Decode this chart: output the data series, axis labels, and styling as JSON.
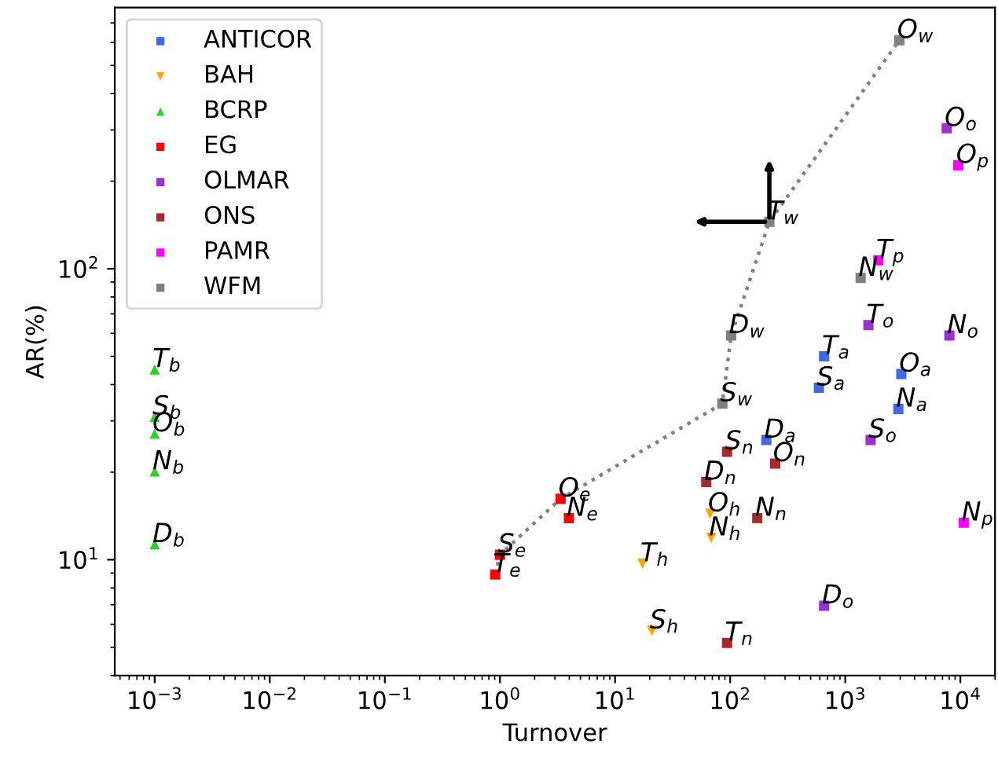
{
  "chart_data": {
    "type": "scatter",
    "xlabel": "Turnover",
    "ylabel": "AR(%)",
    "log": "xy",
    "grid": false,
    "legend": "top left",
    "xlim": [
      0.00045,
      20000
    ],
    "ylim": [
      4.0,
      790
    ],
    "xticks": [
      {
        "value": 0.001,
        "label": "10$^{−3}$"
      },
      {
        "value": 0.01,
        "label": "10$^{−2}$"
      },
      {
        "value": 0.1,
        "label": "10$^{−1}$"
      },
      {
        "value": 1,
        "label": "10$^{0}$"
      },
      {
        "value": 10,
        "label": "10$^{1}$"
      },
      {
        "value": 100,
        "label": "10$^{2}$"
      },
      {
        "value": 1000,
        "label": "10$^{3}$"
      },
      {
        "value": 10000,
        "label": "10$^{4}$"
      }
    ],
    "yticks": [
      {
        "value": 10,
        "label": "10$^{1}$"
      },
      {
        "value": 100,
        "label": "10$^{2}$"
      }
    ],
    "series": [
      {
        "name": "ANTICOR",
        "color": "#4169e1",
        "marker": "square",
        "x": [
          655,
          590,
          3070,
          2890,
          206
        ],
        "values": [
          50,
          39,
          43.5,
          33,
          25.8
        ]
      },
      {
        "name": "BAH",
        "color": "#ffa500",
        "marker": "triangle_down",
        "x": [
          67,
          68.5,
          17.3,
          20.9
        ],
        "values": [
          14.4,
          11.9,
          9.7,
          5.7
        ]
      },
      {
        "name": "BCRP",
        "color": "#32cd32",
        "marker": "triangle",
        "x": [
          0.001,
          0.001,
          0.001,
          0.001,
          0.001
        ],
        "values": [
          45.1,
          31.0,
          27.1,
          20.1,
          11.3
        ]
      },
      {
        "name": "EG",
        "color": "#ff0000",
        "marker": "square",
        "x": [
          0.91,
          1.0,
          3.36,
          3.97
        ],
        "values": [
          8.9,
          10.4,
          16.2,
          13.9
        ]
      },
      {
        "name": "OLMAR",
        "color": "#9932cc",
        "marker": "square",
        "x": [
          7620,
          1590,
          8030,
          1660,
          655
        ],
        "values": [
          304,
          64,
          59,
          25.8,
          6.95
        ]
      },
      {
        "name": "ONS",
        "color": "#a52a2a",
        "marker": "square",
        "x": [
          94,
          246,
          62,
          172,
          94
        ],
        "values": [
          23.5,
          21.4,
          18.5,
          13.9,
          5.18
        ]
      },
      {
        "name": "PAMR",
        "color": "#ff00ff",
        "marker": "square",
        "x": [
          9600,
          1940,
          10700
        ],
        "values": [
          227,
          107,
          13.4
        ]
      },
      {
        "name": "WFM",
        "color": "#808080",
        "marker": "square",
        "x": [
          2950,
          219,
          1360,
          102,
          85.5
        ],
        "values": [
          610,
          145,
          93,
          59,
          34.4
        ]
      },
      {
        "type": "line",
        "color": "#808080",
        "line_style": "dotted",
        "marker": "none",
        "x": [
          0.91,
          1.0,
          3.36,
          85.5,
          102,
          219,
          2950
        ],
        "values": [
          8.9,
          10.4,
          16.2,
          34.4,
          59,
          145,
          610
        ]
      }
    ],
    "annotations": [
      {
        "text": "T$_{a}$",
        "x": 655,
        "y": 50
      },
      {
        "text": "S$_{a}$",
        "x": 590,
        "y": 39
      },
      {
        "text": "O$_{a}$",
        "x": 3070,
        "y": 43.5
      },
      {
        "text": "N$_{a}$",
        "x": 2890,
        "y": 33
      },
      {
        "text": "D$_{a}$",
        "x": 206,
        "y": 25.8
      },
      {
        "text": "O$_{h}$",
        "x": 67,
        "y": 14.4
      },
      {
        "text": "N$_{h}$",
        "x": 68.5,
        "y": 11.9
      },
      {
        "text": "T$_{h}$",
        "x": 17.3,
        "y": 9.7
      },
      {
        "text": "S$_{h}$",
        "x": 20.9,
        "y": 5.7
      },
      {
        "text": "T$_{b}$",
        "x": 0.001,
        "y": 45.1
      },
      {
        "text": "S$_{b}$",
        "x": 0.001,
        "y": 31.0
      },
      {
        "text": "O$_{b}$",
        "x": 0.001,
        "y": 27.1
      },
      {
        "text": "N$_{b}$",
        "x": 0.001,
        "y": 20.1
      },
      {
        "text": "D$_{b}$",
        "x": 0.001,
        "y": 11.3
      },
      {
        "text": "T$_{e}$",
        "x": 0.91,
        "y": 8.9
      },
      {
        "text": "S$_{e}$",
        "x": 1.0,
        "y": 10.4
      },
      {
        "text": "O$_{e}$",
        "x": 3.36,
        "y": 16.2
      },
      {
        "text": "N$_{e}$",
        "x": 3.97,
        "y": 13.9
      },
      {
        "text": "O$_{o}$",
        "x": 7620,
        "y": 304
      },
      {
        "text": "T$_{o}$",
        "x": 1590,
        "y": 64
      },
      {
        "text": "N$_{o}$",
        "x": 8030,
        "y": 59
      },
      {
        "text": "S$_{o}$",
        "x": 1660,
        "y": 25.8
      },
      {
        "text": "D$_{o}$",
        "x": 655,
        "y": 6.95
      },
      {
        "text": "S$_{n}$",
        "x": 94,
        "y": 23.5
      },
      {
        "text": "O$_{n}$",
        "x": 246,
        "y": 21.4
      },
      {
        "text": "D$_{n}$",
        "x": 62,
        "y": 18.5
      },
      {
        "text": "N$_{n}$",
        "x": 172,
        "y": 13.9
      },
      {
        "text": "T$_{n}$",
        "x": 94,
        "y": 5.18
      },
      {
        "text": "O$_{p}$",
        "x": 9600,
        "y": 227
      },
      {
        "text": "T$_{p}$",
        "x": 1940,
        "y": 107
      },
      {
        "text": "N$_{p}$",
        "x": 10700,
        "y": 13.4
      },
      {
        "text": "O$_{w}$",
        "x": 2950,
        "y": 610
      },
      {
        "text": "T$_{w}$",
        "x": 219,
        "y": 145
      },
      {
        "text": "N$_{w}$",
        "x": 1360,
        "y": 93
      },
      {
        "text": "D$_{w}$",
        "x": 102,
        "y": 59
      },
      {
        "text": "S$_{w}$",
        "x": 85.5,
        "y": 34.4
      }
    ]
  }
}
